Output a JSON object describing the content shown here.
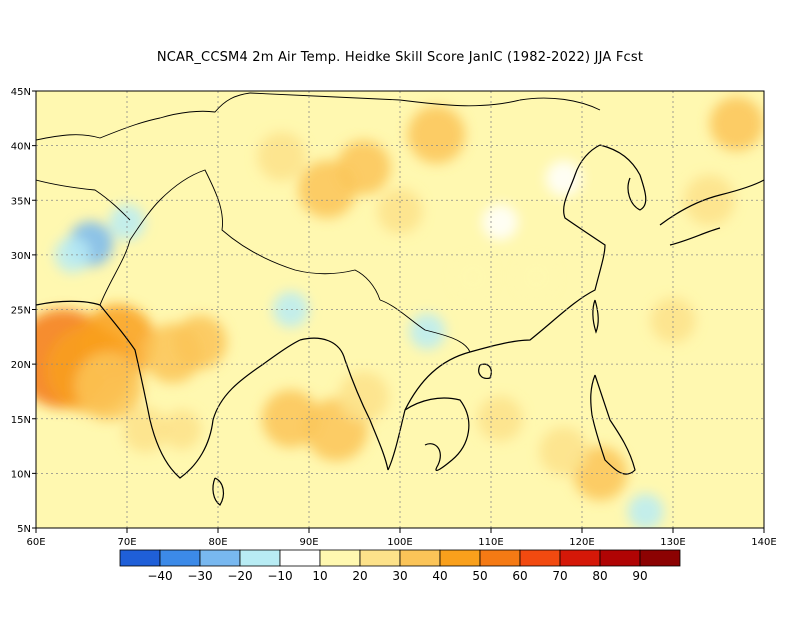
{
  "title": "NCAR_CCSM4  2m Air Temp. Heidke Skill Score JanIC (1982-2022) JJA Fcst",
  "map": {
    "lon_range": [
      60,
      140
    ],
    "lat_range": [
      5,
      45
    ],
    "lon_ticks": [
      {
        "value": 60,
        "label": "60E"
      },
      {
        "value": 70,
        "label": "70E"
      },
      {
        "value": 80,
        "label": "80E"
      },
      {
        "value": 90,
        "label": "90E"
      },
      {
        "value": 100,
        "label": "100E"
      },
      {
        "value": 110,
        "label": "110E"
      },
      {
        "value": 120,
        "label": "120E"
      },
      {
        "value": 130,
        "label": "130E"
      },
      {
        "value": 140,
        "label": "140E"
      }
    ],
    "lat_ticks": [
      {
        "value": 5,
        "label": "5N"
      },
      {
        "value": 10,
        "label": "10N"
      },
      {
        "value": 15,
        "label": "15N"
      },
      {
        "value": 20,
        "label": "20N"
      },
      {
        "value": 25,
        "label": "25N"
      },
      {
        "value": 30,
        "label": "30N"
      },
      {
        "value": 35,
        "label": "35N"
      },
      {
        "value": 40,
        "label": "40N"
      },
      {
        "value": 45,
        "label": "45N"
      }
    ],
    "grid": true
  },
  "colorbar": {
    "colors": [
      "#1f5fd8",
      "#3c8ae8",
      "#78b8f0",
      "#b8ecf4",
      "#ffffff",
      "#fff8b0",
      "#fde28a",
      "#fbc458",
      "#f9a01c",
      "#f57a14",
      "#f24a10",
      "#d51808",
      "#b00404",
      "#8c0202"
    ],
    "labels": [
      "-40",
      "-30",
      "-20",
      "-10",
      "10",
      "20",
      "30",
      "40",
      "50",
      "60",
      "70",
      "80",
      "90"
    ]
  },
  "chart_data": {
    "type": "heatmap",
    "title": "NCAR_CCSM4  2m Air Temp. Heidke Skill Score JanIC (1982-2022) JJA Fcst",
    "xlabel": "",
    "ylabel": "",
    "xlim": [
      60,
      140
    ],
    "ylim": [
      5,
      45
    ],
    "grid": true,
    "legend": "bottom",
    "levels": [
      -40,
      -30,
      -20,
      -10,
      10,
      20,
      30,
      40,
      50,
      60,
      70,
      80,
      90
    ],
    "regions": [
      {
        "lon": 63,
        "lat": 20.5,
        "value": 55
      },
      {
        "lon": 66,
        "lat": 19.5,
        "value": 48
      },
      {
        "lon": 69,
        "lat": 22,
        "value": 42
      },
      {
        "lon": 68,
        "lat": 18,
        "value": 38
      },
      {
        "lon": 75,
        "lat": 21,
        "value": 33
      },
      {
        "lon": 78,
        "lat": 22,
        "value": 30
      },
      {
        "lon": 72,
        "lat": 14,
        "value": 25
      },
      {
        "lon": 76,
        "lat": 14,
        "value": 22
      },
      {
        "lon": 66,
        "lat": 31,
        "value": -25
      },
      {
        "lon": 64,
        "lat": 30,
        "value": -20
      },
      {
        "lon": 70,
        "lat": 33,
        "value": -15
      },
      {
        "lon": 93,
        "lat": 14,
        "value": 35
      },
      {
        "lon": 88,
        "lat": 15,
        "value": 32
      },
      {
        "lon": 96,
        "lat": 17,
        "value": 28
      },
      {
        "lon": 92,
        "lat": 36,
        "value": 32
      },
      {
        "lon": 96,
        "lat": 38,
        "value": 30
      },
      {
        "lon": 104,
        "lat": 41,
        "value": 32
      },
      {
        "lon": 87,
        "lat": 39,
        "value": 27
      },
      {
        "lon": 100,
        "lat": 34,
        "value": 25
      },
      {
        "lon": 122,
        "lat": 10,
        "value": 30
      },
      {
        "lon": 118,
        "lat": 12,
        "value": 27
      },
      {
        "lon": 111,
        "lat": 15,
        "value": 25
      },
      {
        "lon": 130,
        "lat": 24,
        "value": 25
      },
      {
        "lon": 134,
        "lat": 35,
        "value": 28
      },
      {
        "lon": 137,
        "lat": 42,
        "value": 30
      },
      {
        "lon": 127,
        "lat": 6.5,
        "value": -20
      },
      {
        "lon": 103,
        "lat": 23,
        "value": -15
      },
      {
        "lon": 88,
        "lat": 25,
        "value": -15
      },
      {
        "lon": 111,
        "lat": 33,
        "value": 5
      },
      {
        "lon": 118,
        "lat": 37,
        "value": 5
      },
      {
        "lon": 108,
        "lat": 28,
        "value": 12
      },
      {
        "lon": 115,
        "lat": 28,
        "value": 18
      }
    ]
  }
}
